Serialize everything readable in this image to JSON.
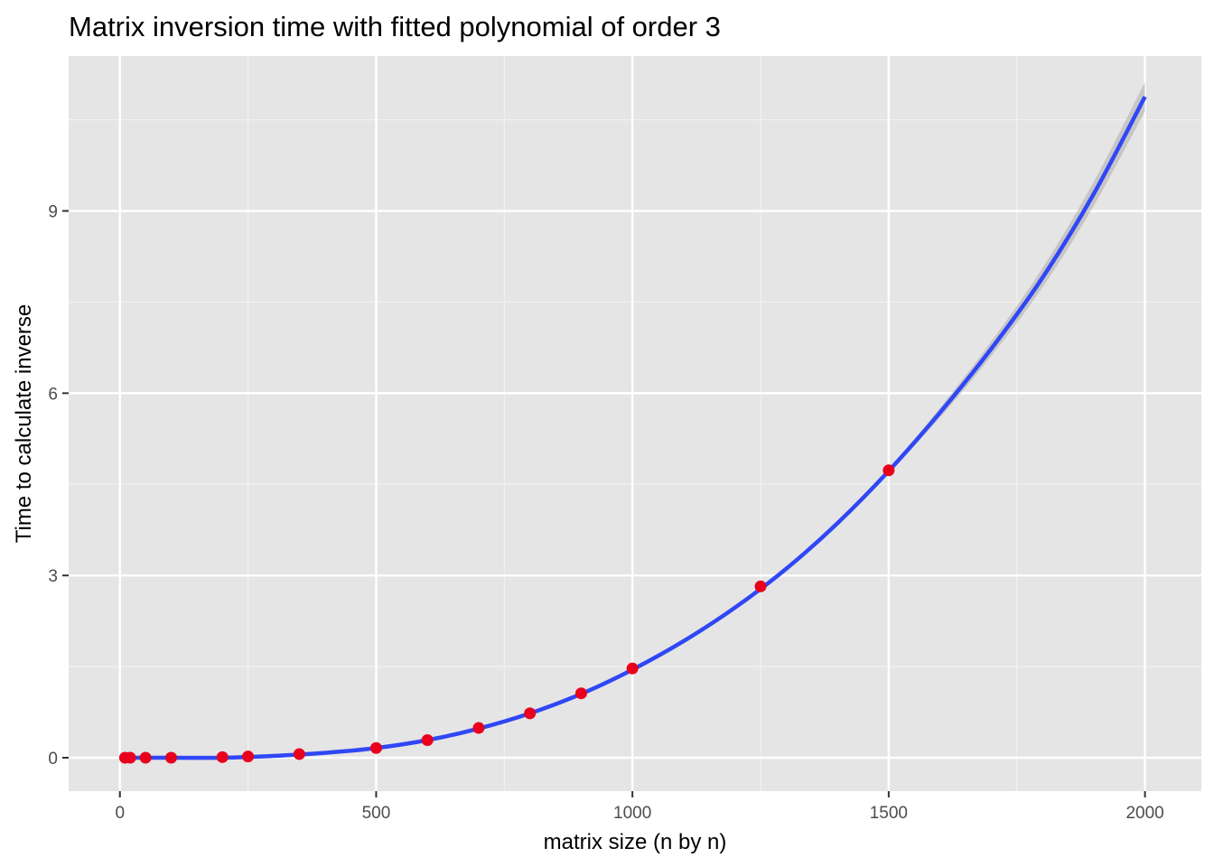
{
  "chart_data": {
    "type": "scatter",
    "title": "Matrix inversion time with fitted polynomial of order 3",
    "xlabel": "matrix size (n by n)",
    "ylabel": "Time to calculate inverse",
    "xlim": [
      -100,
      2110
    ],
    "ylim": [
      -0.55,
      11.55
    ],
    "x_ticks": [
      0,
      500,
      1000,
      1500,
      2000
    ],
    "x_tick_labels": [
      "0",
      "500",
      "1000",
      "1500",
      "2000"
    ],
    "y_ticks": [
      0,
      3,
      6,
      9
    ],
    "y_tick_labels": [
      "0",
      "3",
      "6",
      "9"
    ],
    "grid": true,
    "legend": "none",
    "series": [
      {
        "type": "scatter",
        "color": "#e8001c",
        "x": [
          10,
          20,
          50,
          100,
          200,
          250,
          350,
          500,
          600,
          700,
          800,
          900,
          1000,
          1250,
          1500
        ],
        "y": [
          0.0,
          0.0,
          0.0,
          0.0,
          0.01,
          0.02,
          0.06,
          0.16,
          0.29,
          0.49,
          0.73,
          1.06,
          1.47,
          2.82,
          4.73
        ]
      },
      {
        "type": "line",
        "color": "#3047f5",
        "fit": "polynomial order 3",
        "x": [
          10,
          100,
          200,
          300,
          400,
          500,
          600,
          700,
          800,
          900,
          1000,
          1100,
          1200,
          1300,
          1400,
          1500,
          1600,
          1700,
          1800,
          1900,
          2000
        ],
        "y": [
          0.0,
          0.0,
          0.0,
          0.03,
          0.08,
          0.16,
          0.29,
          0.48,
          0.73,
          1.05,
          1.45,
          1.92,
          2.47,
          3.11,
          3.86,
          4.72,
          5.68,
          6.73,
          7.9,
          9.28,
          10.88
        ]
      }
    ]
  }
}
